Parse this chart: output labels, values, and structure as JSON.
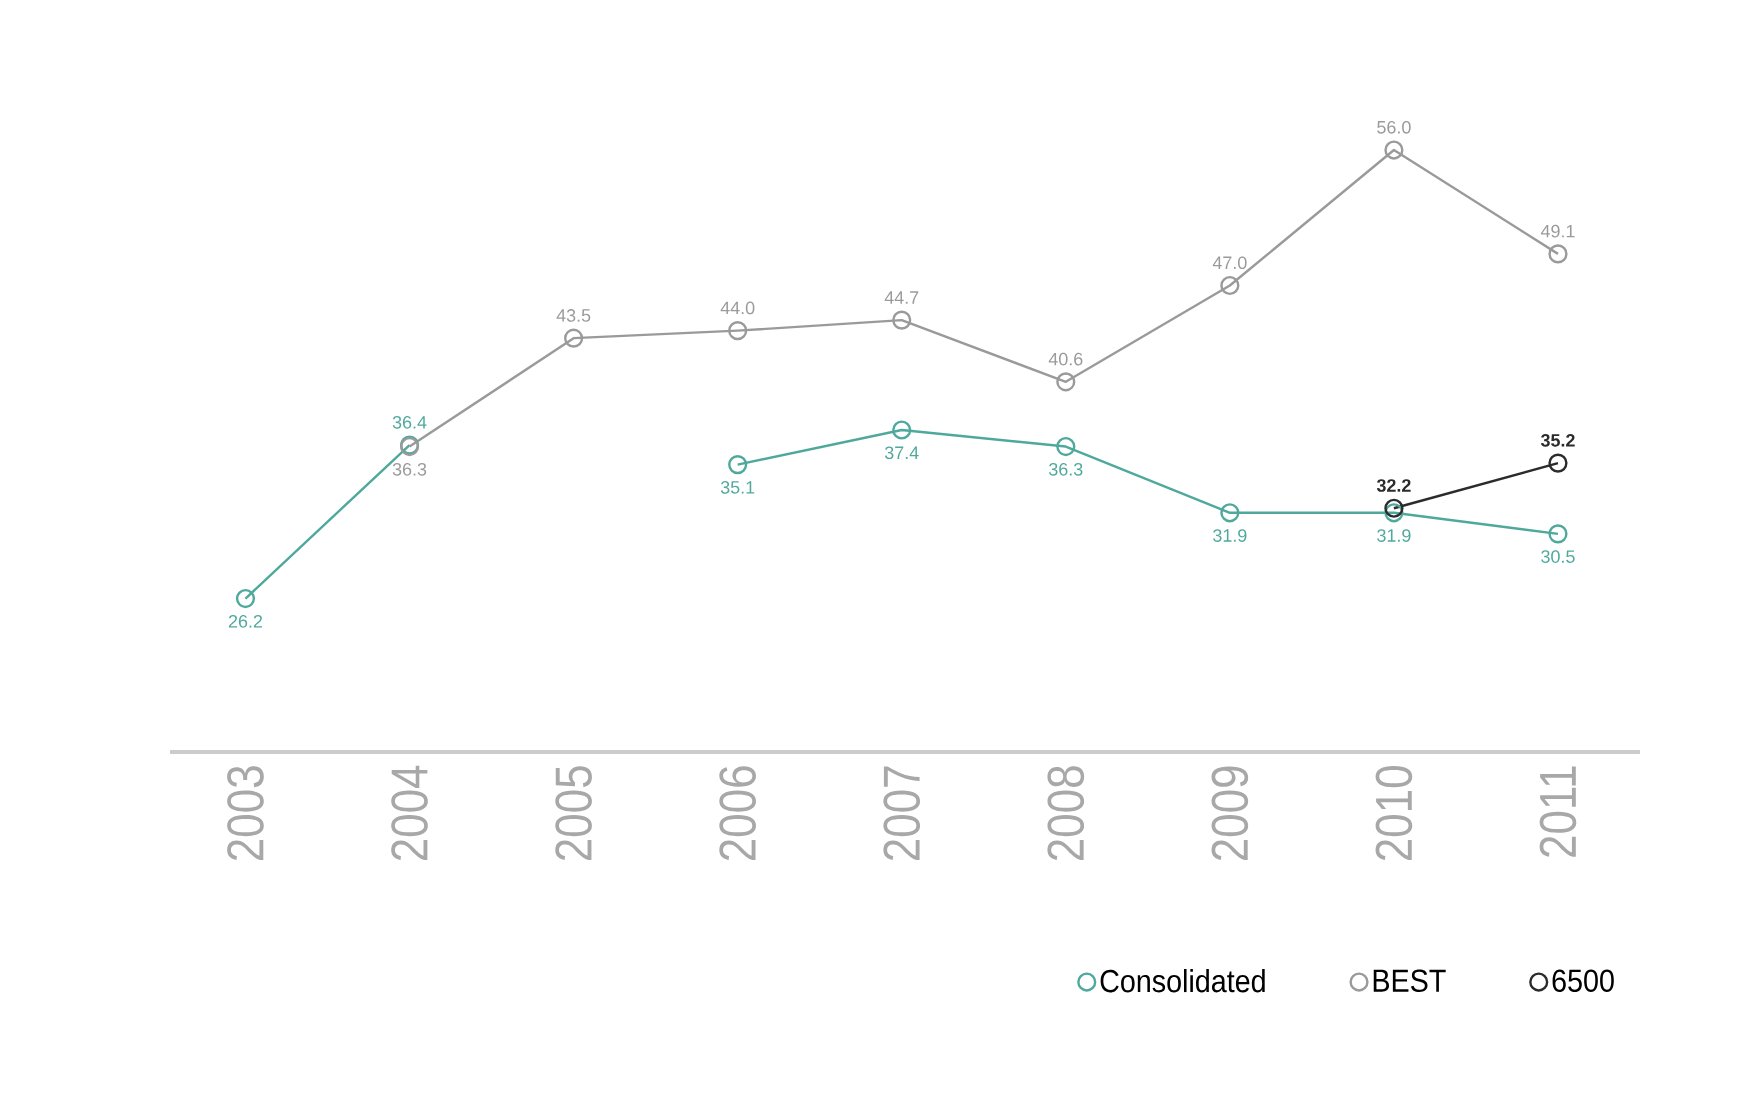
{
  "chart_data": {
    "type": "line",
    "categories": [
      "2003",
      "2004",
      "2005",
      "2006",
      "2007",
      "2008",
      "2009",
      "2010",
      "2011"
    ],
    "series": [
      {
        "name": "Consolidated",
        "color": "#4ea99c",
        "values": [
          26.2,
          36.4,
          null,
          35.1,
          37.4,
          36.3,
          31.9,
          31.9,
          30.5
        ],
        "value_labels": [
          "26.2",
          "36.4",
          null,
          "35.1",
          "37.4",
          "36.3",
          "31.9",
          "31.9",
          "30.5"
        ]
      },
      {
        "name": "BEST",
        "color": "#9a9a9a",
        "values": [
          null,
          36.3,
          43.5,
          44.0,
          44.7,
          40.6,
          47.0,
          56.0,
          49.1
        ],
        "value_labels": [
          null,
          "36.3",
          "43.5",
          "44.0",
          "44.7",
          "40.6",
          "47.0",
          "56.0",
          "49.1"
        ]
      },
      {
        "name": "6500",
        "color": "#2b2b2b",
        "values": [
          null,
          null,
          null,
          null,
          null,
          null,
          null,
          32.2,
          35.2
        ],
        "value_labels": [
          null,
          null,
          null,
          null,
          null,
          null,
          null,
          "32.2",
          "35.2"
        ]
      }
    ],
    "tick_labels": "x",
    "marker": "circle",
    "legend": "bottom right"
  }
}
